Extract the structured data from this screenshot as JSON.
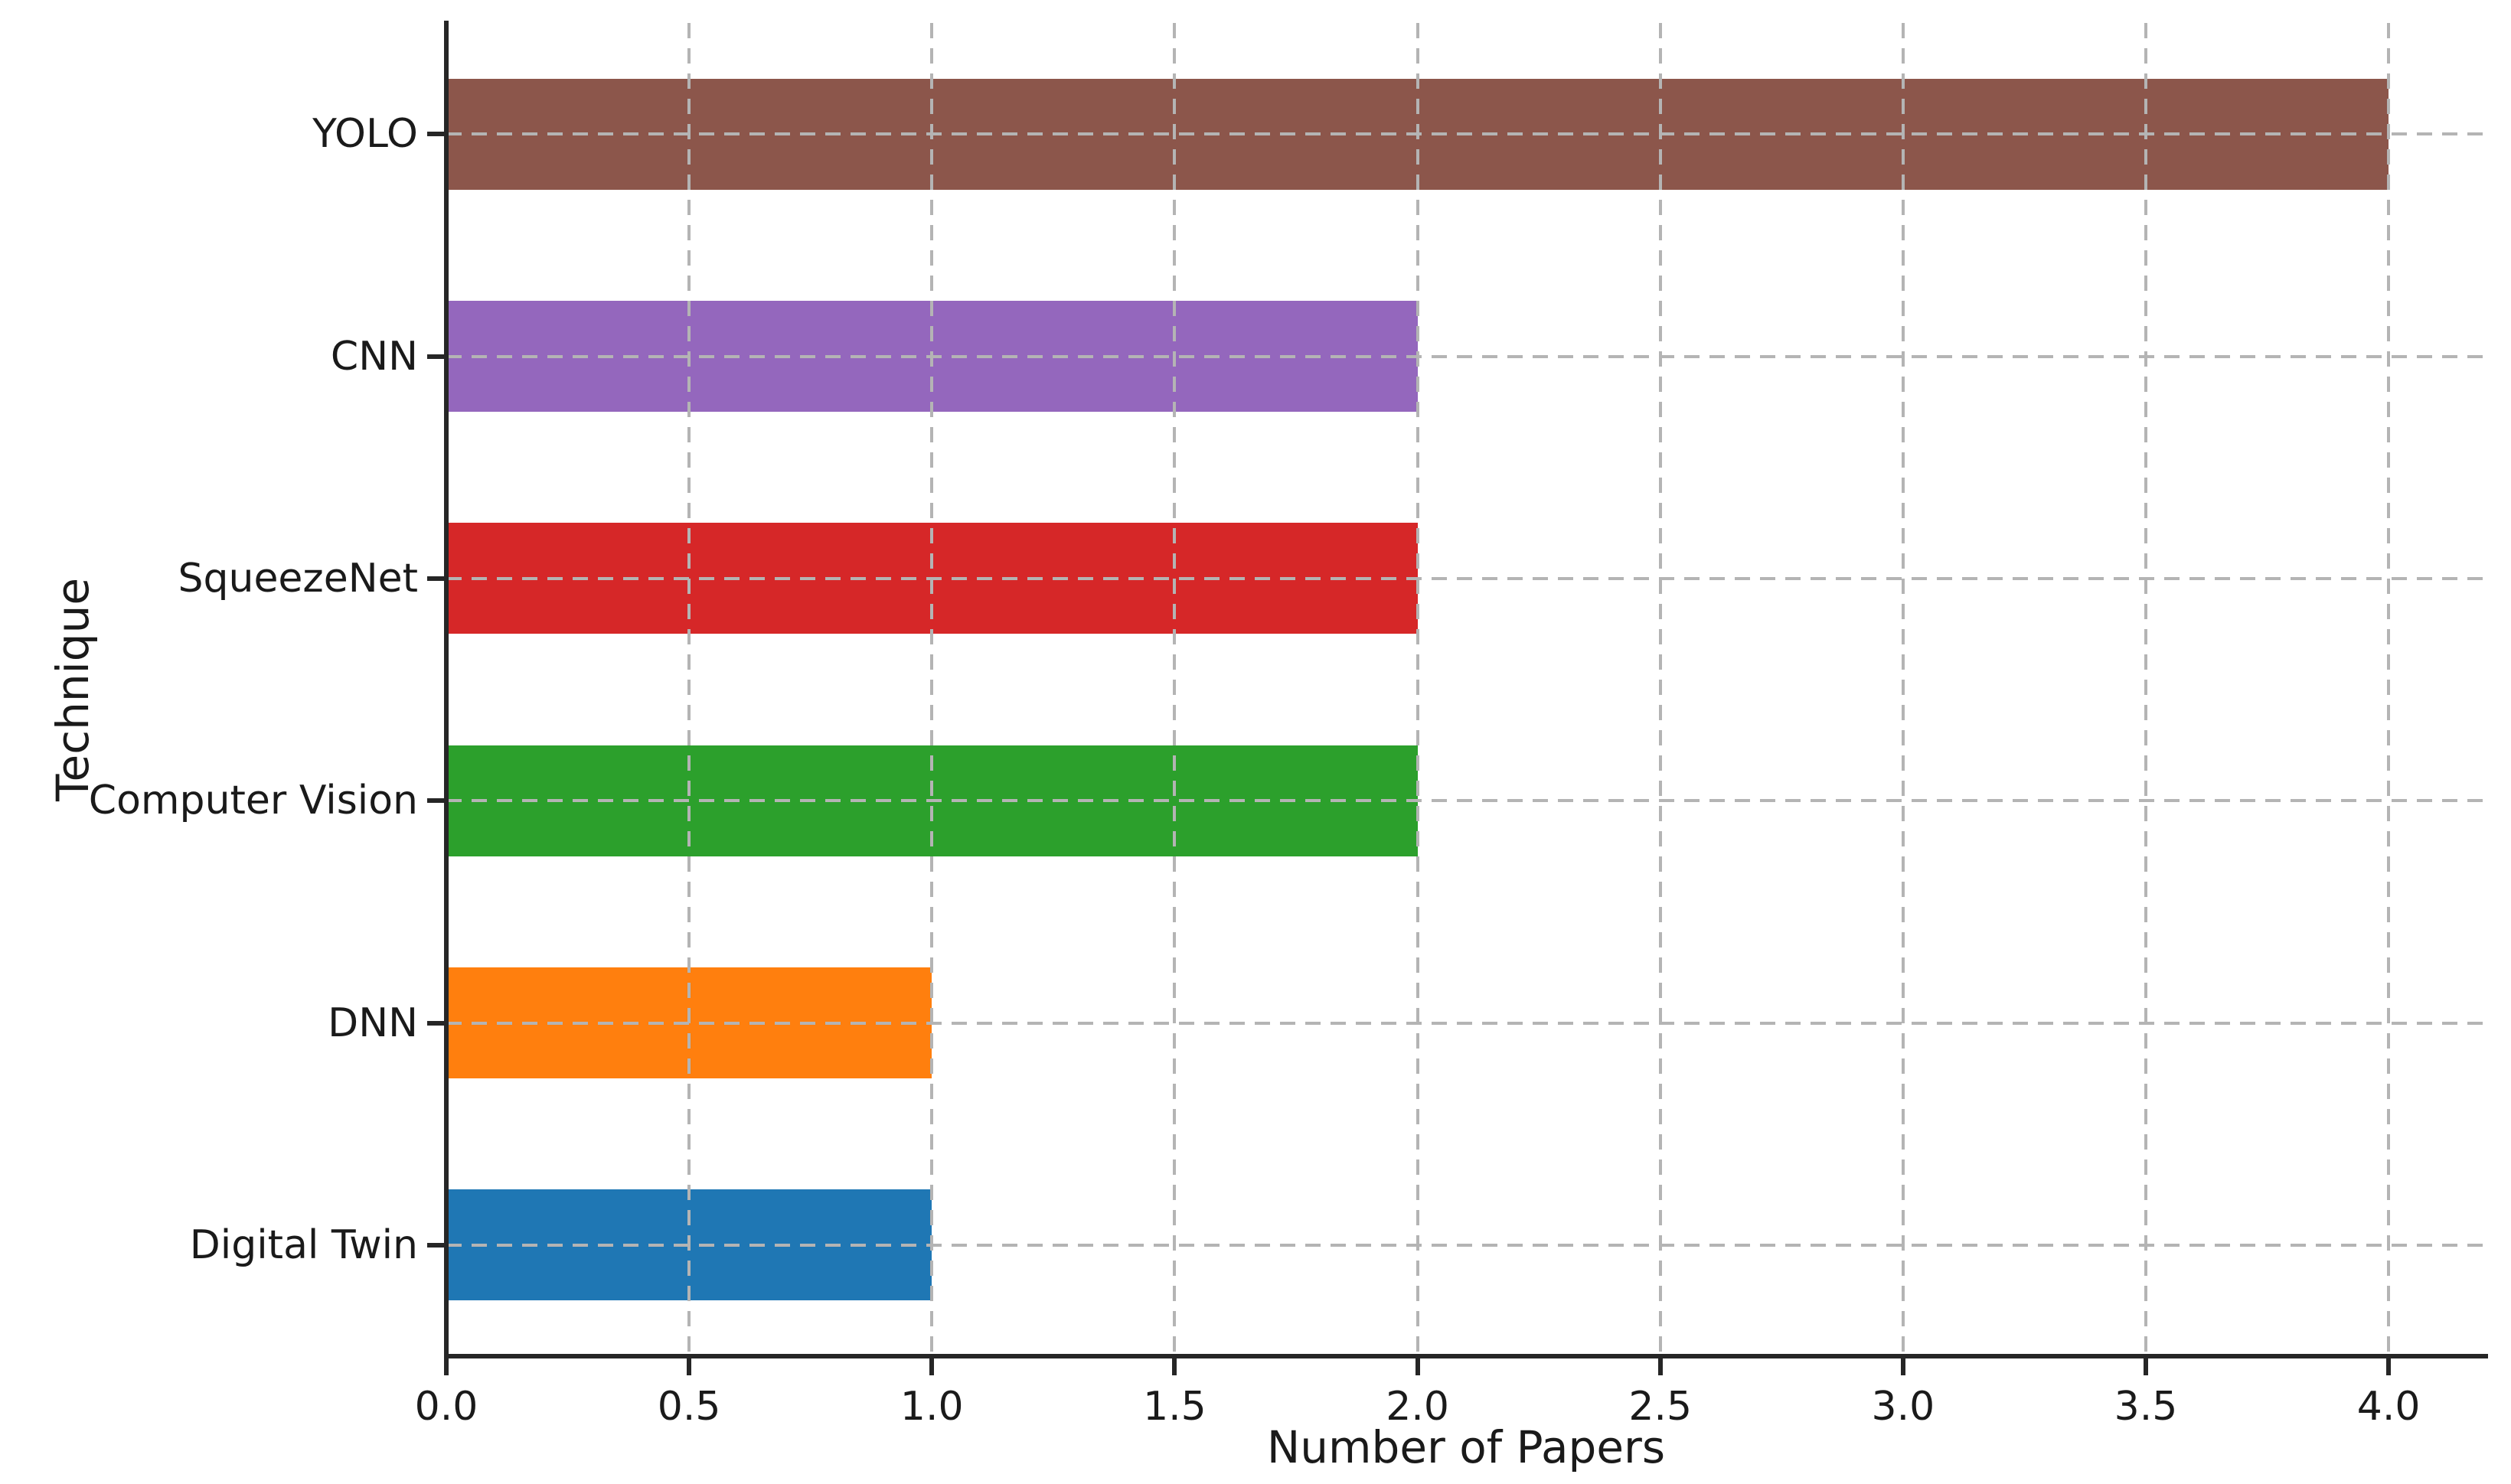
{
  "figure": {
    "background_color": "#ffffff",
    "spine_color": "#262626",
    "grid_color": "#b4b4b4",
    "text_color": "#1a1a1a"
  },
  "chart_data": {
    "type": "bar",
    "orientation": "horizontal",
    "title": "",
    "xlabel": "Number of Papers",
    "ylabel": "Technique",
    "categories": [
      "YOLO",
      "CNN",
      "SqueezeNet",
      "Computer Vision",
      "DNN",
      "Digital Twin"
    ],
    "values": [
      4,
      2,
      2,
      2,
      1,
      1
    ],
    "bar_colors": [
      "#8c564b",
      "#9467bd",
      "#d62728",
      "#2ca02c",
      "#ff7f0e",
      "#1f77b4"
    ],
    "xticks": [
      0.0,
      0.5,
      1.0,
      1.5,
      2.0,
      2.5,
      3.0,
      3.5,
      4.0
    ],
    "xtick_labels": [
      "0.0",
      "0.5",
      "1.0",
      "1.5",
      "2.0",
      "2.5",
      "3.0",
      "3.5",
      "4.0"
    ],
    "xlim": [
      0,
      4.2
    ],
    "grid": "dashed, both axes, drawn above bars",
    "legend": "none"
  }
}
